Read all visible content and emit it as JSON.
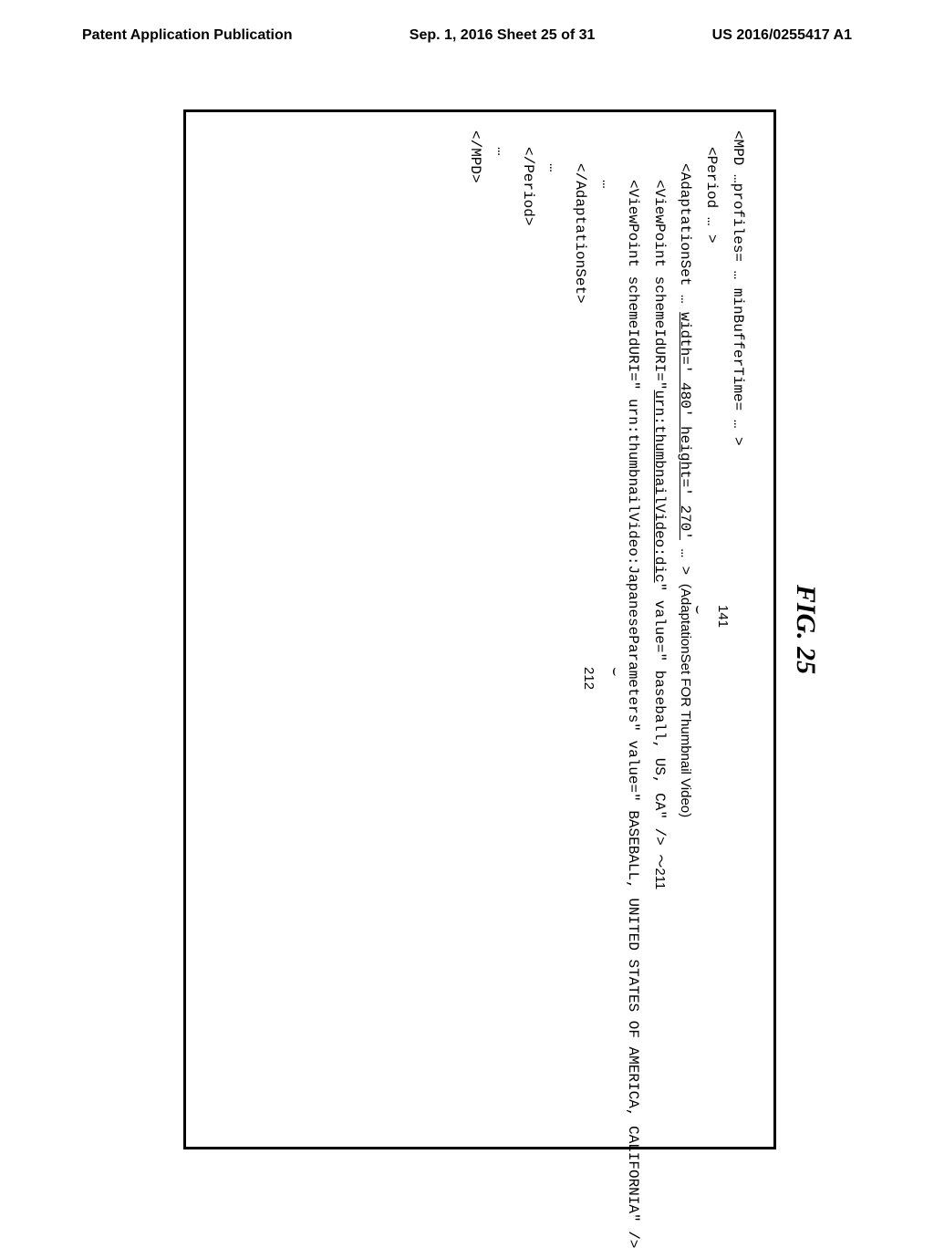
{
  "page_header": {
    "left": "Patent Application Publication",
    "center": "Sep. 1, 2016   Sheet 25 of 31",
    "right": "US 2016/0255417 A1"
  },
  "figure": {
    "title": "FIG. 25",
    "code": {
      "line1_a": "<MPD …profiles= … minBufferTime= … >",
      "line2": "<Period … >",
      "line3_a": "<AdaptationSet … ",
      "line3_underlined": "width=' 480'  height=' 270'",
      "line3_b": " … > ",
      "line3_annotation": "(AdaptationSet FOR Thumbnail Video)",
      "line4_a": "<ViewPoint schemeIdURI=\"",
      "line4_underlined": "urn:thumbnailVideo:dic",
      "line4_b": "\" value=\" baseball, US, CA\" /> ",
      "line4_ref": "～211",
      "line5": "<ViewPoint schemeIdURI=\" urn:thumbnailVideo:JapaneseParameters\" value=\" BASEBALL, UNITED STATES OF AMERICA, CALIFORNIA\" />",
      "line6": "…",
      "line7": "</AdaptationSet>",
      "line8": "…",
      "line9": "</Period>",
      "line10": "…",
      "line11": "</MPD>"
    },
    "callouts": {
      "ref_141": "141",
      "ref_212": "212",
      "curve_141": "⌣",
      "curve_212": "⌣"
    }
  }
}
